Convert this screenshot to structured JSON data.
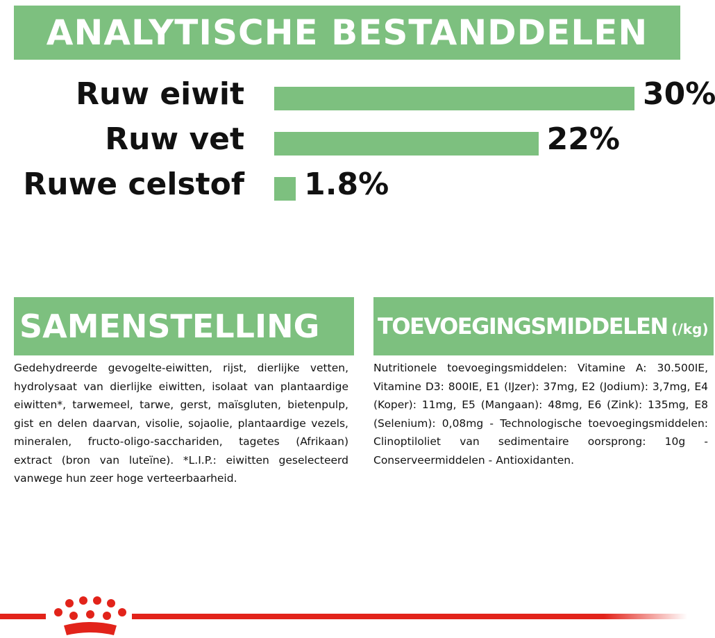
{
  "chart_data": {
    "type": "bar",
    "title": "ANALYTISCHE BESTANDDELEN",
    "categories": [
      "Ruw eiwit",
      "Ruw vet",
      "Ruwe celstof"
    ],
    "values": [
      30,
      22,
      1.8
    ],
    "value_labels": [
      "30%",
      "22%",
      "1.8%"
    ],
    "color": "#7dc07f"
  },
  "composition": {
    "title": "SAMENSTELLING",
    "text": "Gedehydreerde gevogelte-eiwitten, rijst, dierlijke vetten, hydrolysaat van dierlijke eiwitten, isolaat van plantaardige eiwitten*, tarwemeel, tarwe, gerst, maïsgluten, bietenpulp, gist en delen daarvan, visolie, sojaolie, plantaardige vezels, mineralen, fructo-oligo-sacchariden, tagetes (Afrikaan) extract (bron van luteïne). *L.I.P.: eiwitten geselecteerd vanwege hun zeer hoge verteerbaarheid."
  },
  "additives": {
    "title": "TOEVOEGINGSMIDDELEN",
    "unit": "(/kg)",
    "text": "Nutritionele toevoegingsmiddelen: Vitamine A: 30.500IE, Vitamine D3: 800IE, E1 (IJzer): 37mg, E2 (Jodium): 3,7mg, E4 (Koper): 11mg, E5 (Mangaan): 48mg, E6 (Zink): 135mg, E8 (Selenium): 0,08mg - Technologische toevoegingsmiddelen: Clinoptiloliet van sedimentaire oorsprong: 10g - Conserveermiddelen - Antioxidanten."
  }
}
